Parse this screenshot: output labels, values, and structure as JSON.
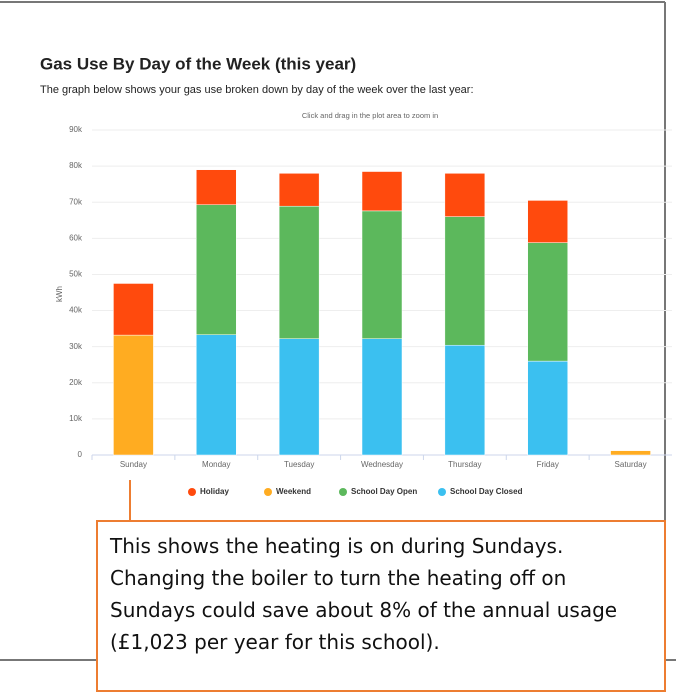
{
  "chart_data": {
    "type": "stacked_bar",
    "title": "Gas Use By Day of the Week (this year)",
    "subtitle": "The graph below shows your gas use broken down by day of the week over the last year:",
    "note": "Click and drag in the plot area to zoom in",
    "y_label": "kWh",
    "categories": [
      "Sunday",
      "Monday",
      "Tuesday",
      "Wednesday",
      "Thursday",
      "Friday",
      "Saturday"
    ],
    "series": [
      {
        "name": "Holiday",
        "color": "#ff4a0d",
        "values": [
          14300,
          9700,
          9100,
          10900,
          12000,
          11700,
          0
        ]
      },
      {
        "name": "Weekend",
        "color": "#ffac21",
        "values": [
          33200,
          0,
          0,
          0,
          0,
          0,
          1200
        ]
      },
      {
        "name": "School Day Open",
        "color": "#5cb85c",
        "values": [
          0,
          36000,
          36700,
          35400,
          35600,
          32800,
          0
        ]
      },
      {
        "name": "School Day Closed",
        "color": "#3bc0f0",
        "values": [
          0,
          33300,
          32200,
          32200,
          30400,
          26000,
          0
        ]
      }
    ],
    "ylim": [
      0,
      90000
    ],
    "yticks": [
      0,
      {
        "value": 10000,
        "label": "10k"
      },
      {
        "value": 20000,
        "label": "20k"
      },
      {
        "value": 30000,
        "label": "30k"
      },
      {
        "value": 40000,
        "label": "40k"
      },
      {
        "value": 50000,
        "label": "50k"
      },
      {
        "value": 60000,
        "label": "60k"
      },
      {
        "value": 70000,
        "label": "70k"
      },
      {
        "value": 80000,
        "label": "80k"
      },
      {
        "value": 90000,
        "label": "90k"
      }
    ],
    "grid": true,
    "legend": "bottom",
    "annotation": "This shows the heating is on during Sundays. Changing the boiler to turn the heating off on Sundays could save about 8% of the annual usage (£1,023 per year for this school)."
  }
}
